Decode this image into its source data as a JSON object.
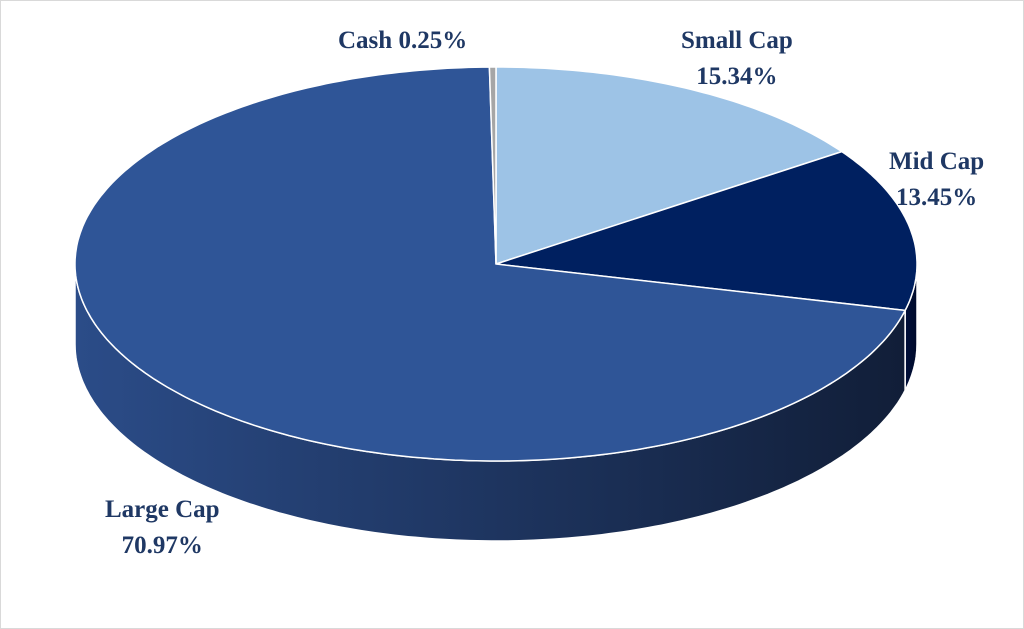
{
  "chart_data": {
    "type": "pie",
    "style": "3d",
    "title": "",
    "start": "top",
    "direction": "clockwise",
    "slices": [
      {
        "label": "Small Cap",
        "value": 15.34,
        "display": "15.34%",
        "color": "#9DC3E6"
      },
      {
        "label": "Mid Cap",
        "value": 13.45,
        "display": "13.45%",
        "color": "#002060"
      },
      {
        "label": "Large Cap",
        "value": 70.97,
        "display": "70.97%",
        "color": "#2F5597"
      },
      {
        "label": "Cash",
        "value": 0.25,
        "display": "0.25%",
        "color": "#A6A6A6"
      }
    ],
    "side_colors": {
      "Mid Cap": [
        "#000F3A",
        "#000A2A"
      ],
      "Large Cap": [
        "#2B4C88",
        "#111E38"
      ]
    },
    "label_color": "#1F3864",
    "legend": "none"
  }
}
